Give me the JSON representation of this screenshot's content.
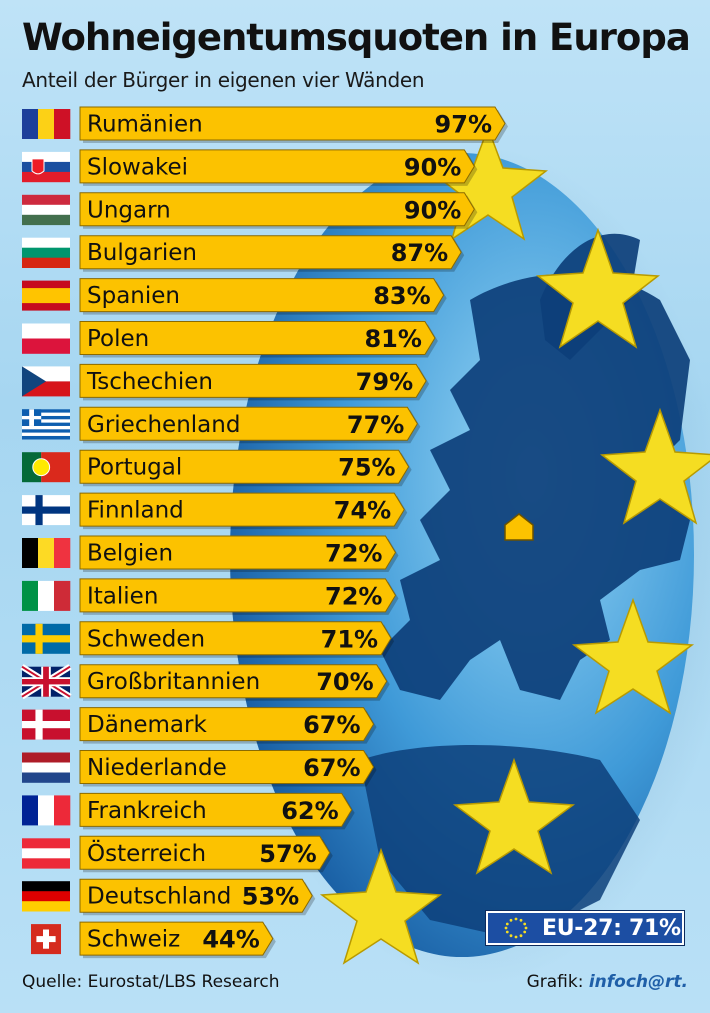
{
  "title": "Wohneigentumsquoten in Europa",
  "subtitle": "Anteil der Bürger in eigenen vier Wänden",
  "source": "Quelle: Eurostat/LBS Research",
  "credit_label": "Grafik:",
  "credit_brand": "infoch@rt.",
  "eu_summary": "EU-27: 71%",
  "colors": {
    "bar": "#fcc200",
    "bar_border": "#8a6a00",
    "globe_light": "#6fc3ee",
    "globe_dark": "#1f6fb6",
    "land": "#0d3f7a",
    "star": "#f5dd22",
    "eu_blue": "#1c4ea3"
  },
  "chart_data": {
    "type": "bar",
    "orientation": "horizontal",
    "unit": "%",
    "categories": [
      "Rumänien",
      "Slowakei",
      "Ungarn",
      "Bulgarien",
      "Spanien",
      "Polen",
      "Tschechien",
      "Griechenland",
      "Portugal",
      "Finnland",
      "Belgien",
      "Italien",
      "Schweden",
      "Großbritannien",
      "Dänemark",
      "Niederlande",
      "Frankreich",
      "Österreich",
      "Deutschland",
      "Schweiz"
    ],
    "values": [
      97,
      90,
      90,
      87,
      83,
      81,
      79,
      77,
      75,
      74,
      72,
      72,
      71,
      70,
      67,
      67,
      62,
      57,
      53,
      44
    ],
    "value_labels": [
      "97%",
      "90%",
      "90%",
      "87%",
      "83%",
      "81%",
      "79%",
      "77%",
      "75%",
      "74%",
      "72%",
      "72%",
      "71%",
      "70%",
      "67%",
      "67%",
      "62%",
      "57%",
      "53%",
      "44%"
    ],
    "flags": [
      {
        "type": "v",
        "colors": [
          "#1d3f9a",
          "#fcd116",
          "#ce1126"
        ]
      },
      {
        "type": "h",
        "colors": [
          "#ffffff",
          "#1a4fa0",
          "#e21c2a"
        ],
        "emblem": "slovakia"
      },
      {
        "type": "h",
        "colors": [
          "#cd2a3e",
          "#ffffff",
          "#436f4d"
        ]
      },
      {
        "type": "h",
        "colors": [
          "#ffffff",
          "#00966e",
          "#d62612"
        ]
      },
      {
        "type": "spain",
        "colors": [
          "#c60b1e",
          "#ffc400"
        ]
      },
      {
        "type": "h",
        "colors": [
          "#ffffff",
          "#dc143c"
        ]
      },
      {
        "type": "czech",
        "colors": [
          "#ffffff",
          "#d7141a",
          "#11457e"
        ]
      },
      {
        "type": "greece",
        "colors": [
          "#0d5eaf",
          "#ffffff"
        ]
      },
      {
        "type": "portugal",
        "colors": [
          "#046a38",
          "#da291c",
          "#ffe900"
        ]
      },
      {
        "type": "nordic",
        "colors": [
          "#ffffff",
          "#003580"
        ]
      },
      {
        "type": "v",
        "colors": [
          "#000000",
          "#fdda24",
          "#ef3340"
        ]
      },
      {
        "type": "v",
        "colors": [
          "#009246",
          "#ffffff",
          "#ce2b37"
        ]
      },
      {
        "type": "nordic",
        "colors": [
          "#006aa7",
          "#fecc00"
        ]
      },
      {
        "type": "uk",
        "colors": [
          "#012169",
          "#ffffff",
          "#c8102e"
        ]
      },
      {
        "type": "nordic",
        "colors": [
          "#c8102e",
          "#ffffff"
        ]
      },
      {
        "type": "h",
        "colors": [
          "#ae1c28",
          "#ffffff",
          "#21468b"
        ]
      },
      {
        "type": "v",
        "colors": [
          "#002395",
          "#ffffff",
          "#ed2939"
        ]
      },
      {
        "type": "h",
        "colors": [
          "#ed2939",
          "#ffffff",
          "#ed2939"
        ]
      },
      {
        "type": "h",
        "colors": [
          "#000000",
          "#dd0000",
          "#ffce00"
        ]
      },
      {
        "type": "swiss",
        "colors": [
          "#d52b1e",
          "#ffffff"
        ]
      }
    ],
    "xlim": [
      0,
      100
    ],
    "legend": "none",
    "grid": false
  }
}
